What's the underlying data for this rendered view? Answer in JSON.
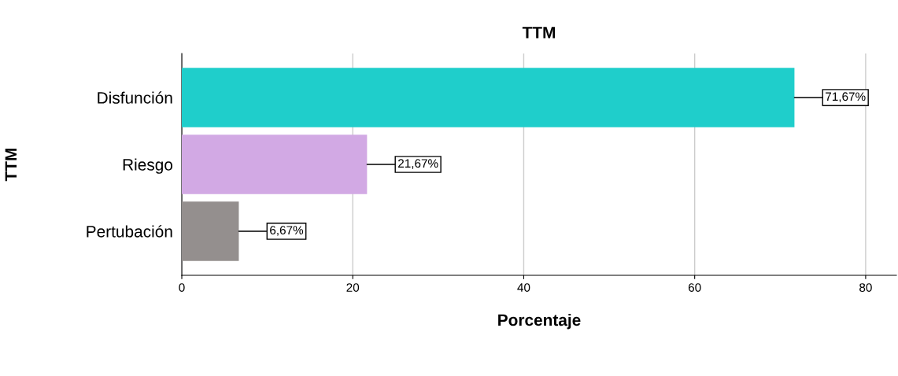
{
  "chart_data": {
    "type": "bar",
    "orientation": "horizontal",
    "title": "TTM",
    "xlabel": "Porcentaje",
    "ylabel": "TTM",
    "categories": [
      "Disfunción",
      "Riesgo",
      "Pertubación"
    ],
    "values": [
      71.67,
      21.67,
      6.67
    ],
    "colors": [
      "#1fcecb",
      "#d2a9e4",
      "#948f8e"
    ],
    "value_labels": [
      "71,67%",
      "21,67%",
      "6,67%"
    ],
    "xlim": [
      0,
      83.6
    ],
    "xticks": [
      0,
      20,
      40,
      60,
      80
    ],
    "grid": "x",
    "legend": false
  }
}
